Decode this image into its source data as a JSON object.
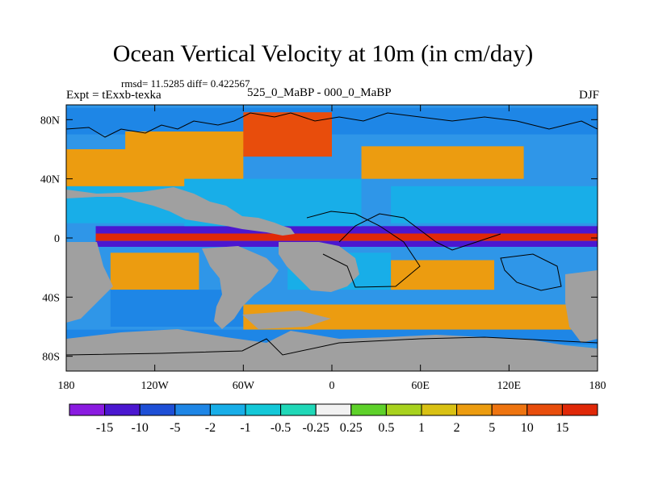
{
  "header": {
    "rmsd_text": "rmsd= 11.5285 diff= 0.422567",
    "experiment": "Expt = tExxb-texka",
    "comparison": "525_0_MaBP - 000_0_MaBP",
    "season": "DJF"
  },
  "chart_data": {
    "type": "heatmap",
    "title": "Ocean Vertical Velocity at 10m (in cm/day)",
    "variable": "Ocean vertical velocity at 10m",
    "units": "cm/day",
    "x_axis": {
      "range": [
        -180,
        180
      ],
      "ticks": [
        {
          "value": -180,
          "label": "180"
        },
        {
          "value": -120,
          "label": "120W"
        },
        {
          "value": -60,
          "label": "60W"
        },
        {
          "value": 0,
          "label": "0"
        },
        {
          "value": 60,
          "label": "60E"
        },
        {
          "value": 120,
          "label": "120E"
        },
        {
          "value": 180,
          "label": "180"
        }
      ]
    },
    "y_axis": {
      "range": [
        -90,
        90
      ],
      "ticks": [
        {
          "value": 80,
          "label": "80N"
        },
        {
          "value": 40,
          "label": "40N"
        },
        {
          "value": 0,
          "label": "0"
        },
        {
          "value": -40,
          "label": "40S"
        },
        {
          "value": -80,
          "label": "80S"
        }
      ]
    },
    "land_color": "#a0a0a0",
    "colorbar": {
      "levels": [
        "-15",
        "-10",
        "-5",
        "-2",
        "-1",
        "-0.5",
        "-0.25",
        "0.25",
        "0.5",
        "1",
        "2",
        "5",
        "10",
        "15"
      ],
      "colors": [
        "#8a1be0",
        "#4b17d0",
        "#1e4fd6",
        "#1e86e6",
        "#18aee8",
        "#14c8d8",
        "#20d8b8",
        "#f2f2f2",
        "#5ed12a",
        "#a8d21e",
        "#d9c114",
        "#ec9c10",
        "#ee7410",
        "#e84d0c",
        "#e02808"
      ]
    },
    "regions": [
      {
        "name": "equatorial-upwelling-band",
        "lon": [
          -160,
          180
        ],
        "lat": [
          -2,
          3
        ],
        "level": 14
      },
      {
        "name": "equatorial-downwelling-north",
        "lon": [
          -160,
          180
        ],
        "lat": [
          3,
          8
        ],
        "level": 1
      },
      {
        "name": "equatorial-downwelling-south",
        "lon": [
          -160,
          180
        ],
        "lat": [
          -6,
          -2
        ],
        "level": 1
      },
      {
        "name": "north-pacific-subtropics",
        "lon": [
          -180,
          -100
        ],
        "lat": [
          10,
          35
        ],
        "level": 4
      },
      {
        "name": "north-pacific-mid",
        "lon": [
          -180,
          -60
        ],
        "lat": [
          35,
          60
        ],
        "level": 11
      },
      {
        "name": "arctic-north",
        "lon": [
          -180,
          180
        ],
        "lat": [
          70,
          88
        ],
        "level": 3
      },
      {
        "name": "arctic-orange",
        "lon": [
          -140,
          -20
        ],
        "lat": [
          60,
          72
        ],
        "level": 11
      },
      {
        "name": "north-atlantic-upwelling",
        "lon": [
          -60,
          0
        ],
        "lat": [
          55,
          85
        ],
        "level": 13
      },
      {
        "name": "eurasia-sea-orange",
        "lon": [
          20,
          130
        ],
        "lat": [
          40,
          62
        ],
        "level": 11
      },
      {
        "name": "eurasia-sea-blue",
        "lon": [
          40,
          180
        ],
        "lat": [
          10,
          35
        ],
        "level": 4
      },
      {
        "name": "tropical-north-blue",
        "lon": [
          -100,
          20
        ],
        "lat": [
          8,
          40
        ],
        "level": 4
      },
      {
        "name": "south-pacific-orange",
        "lon": [
          -150,
          -90
        ],
        "lat": [
          -35,
          -10
        ],
        "level": 11
      },
      {
        "name": "south-pacific-blue",
        "lon": [
          -150,
          -60
        ],
        "lat": [
          -60,
          -35
        ],
        "level": 3
      },
      {
        "name": "south-atlantic-blue",
        "lon": [
          -30,
          40
        ],
        "lat": [
          -35,
          -10
        ],
        "level": 4
      },
      {
        "name": "indian-ocean-orange",
        "lon": [
          40,
          110
        ],
        "lat": [
          -35,
          -15
        ],
        "level": 11
      },
      {
        "name": "southern-ocean-orange",
        "lon": [
          -60,
          180
        ],
        "lat": [
          -62,
          -45
        ],
        "level": 11
      },
      {
        "name": "southern-ocean-south-red",
        "lon": [
          -10,
          110
        ],
        "lat": [
          -75,
          -65
        ],
        "level": 12
      },
      {
        "name": "southern-ocean-blue",
        "lon": [
          -180,
          180
        ],
        "lat": [
          -72,
          -62
        ],
        "level": 3
      }
    ]
  }
}
